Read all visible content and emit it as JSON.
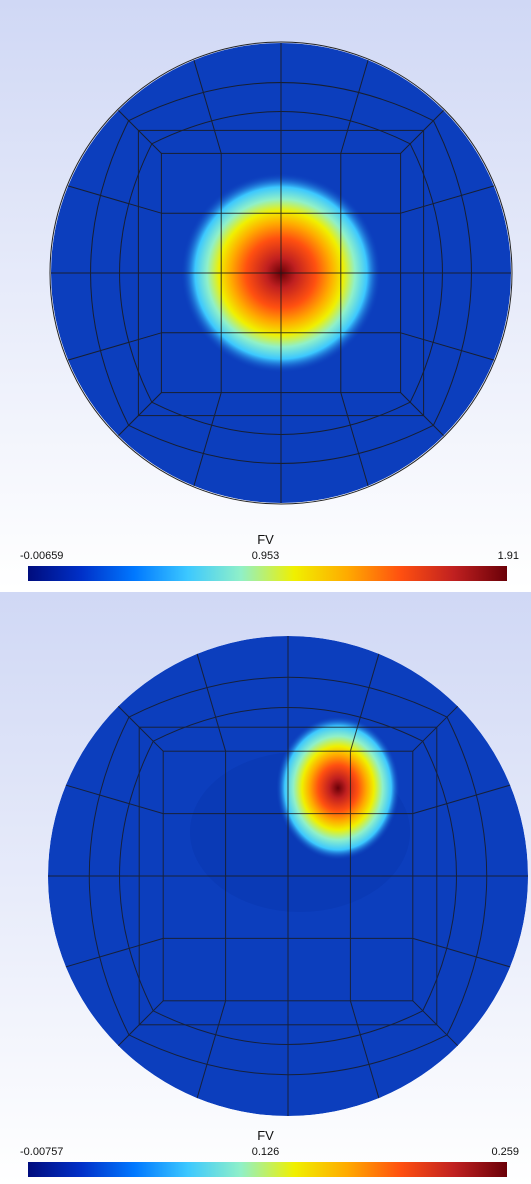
{
  "panels": [
    {
      "id": "top",
      "colorbar": {
        "title": "FV",
        "min_label": "-0.00659",
        "mid_label": "0.953",
        "max_label": "1.91"
      },
      "hotspot": {
        "u": 0.0,
        "v": 0.0,
        "peak": 1.91
      }
    },
    {
      "id": "bottom",
      "colorbar": {
        "title": "FV",
        "min_label": "-0.00757",
        "mid_label": "0.126",
        "max_label": "0.259"
      },
      "hotspot": {
        "u": 0.24,
        "v": 0.45,
        "peak": 0.259
      }
    }
  ],
  "colors": {
    "background_top": "#d0d8f5",
    "background_bottom": "#ffffff",
    "field_base": "#0c3ebd",
    "mesh_line": "#1a1a1a"
  }
}
